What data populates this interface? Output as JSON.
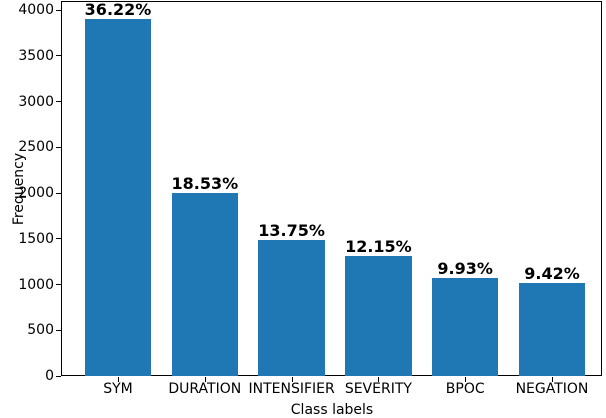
{
  "chart_data": {
    "type": "bar",
    "title": "",
    "xlabel": "Class labels",
    "ylabel": "Frequency",
    "categories": [
      "SYM",
      "DURATION",
      "INTENSIFIER",
      "SEVERITY",
      "BPOC",
      "NEGATION"
    ],
    "values": [
      3909,
      2000,
      1484,
      1311,
      1072,
      1017
    ],
    "bar_labels": [
      "36.22%",
      "18.53%",
      "13.75%",
      "12.15%",
      "9.93%",
      "9.42%"
    ],
    "ylim": [
      0,
      4090
    ],
    "yticks": [
      0,
      500,
      1000,
      1500,
      2000,
      2500,
      3000,
      3500,
      4000
    ],
    "grid": false,
    "legend": false,
    "bar_color": "#1f77b4",
    "text_color": "#000000",
    "background_color": "#ffffff"
  }
}
